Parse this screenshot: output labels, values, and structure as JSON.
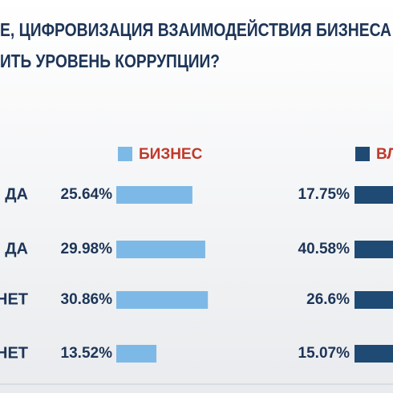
{
  "chart_data": {
    "type": "bar",
    "title": [
      "Е, ЦИФРОВИЗАЦИЯ ВЗАИМОДЕЙСТВИЯ БИЗНЕСА",
      "ИТЬ УРОВЕНЬ КОРРУПЦИИ?"
    ],
    "categories": [
      "ДА",
      "ДА",
      "НЕТ",
      "НЕТ"
    ],
    "series": [
      {
        "name": "БИЗНЕС",
        "color": "#7db9e6",
        "values": [
          25.64,
          29.98,
          30.86,
          13.52
        ],
        "value_labels": [
          "25.64%",
          "29.98%",
          "30.86%",
          "13.52%"
        ]
      },
      {
        "name": "ВЛ",
        "color": "#1f4a73",
        "values": [
          17.75,
          40.58,
          26.6,
          15.07
        ],
        "value_labels": [
          "17.75%",
          "40.58%",
          "26.6%",
          "15.07%"
        ]
      }
    ]
  }
}
